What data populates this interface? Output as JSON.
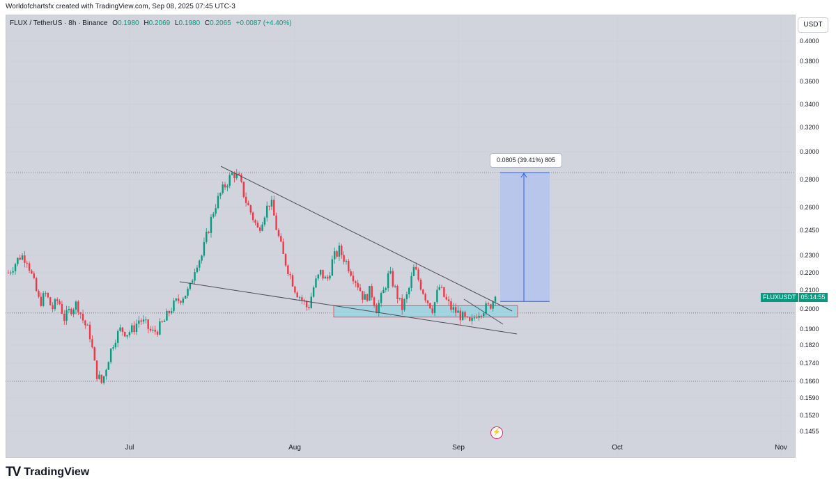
{
  "header": {
    "attribution": "Worldofchartsfx created with TradingView.com, Sep 08, 2025 07:45 UTC-3"
  },
  "legend": {
    "symbol": "FLUX / TetherUS · 8h · Binance",
    "open_label": "O",
    "open": "0.1980",
    "high_label": "H",
    "high": "0.2069",
    "low_label": "L",
    "low": "0.1980",
    "close_label": "C",
    "close": "0.2065",
    "change": "+0.0087 (+4.40%)"
  },
  "currency_button": "USDT",
  "price_badge": {
    "ticker": "FLUXUSDT",
    "countdown": "05:14:55"
  },
  "measure": {
    "label": "0.0805 (39.41%) 805"
  },
  "colors": {
    "up": "#089981",
    "down": "#f23645",
    "panel": "#d1d4dc",
    "measure_fill": "#b3c3ec",
    "measure_line": "#2962ff",
    "zone_fill": "#a3d3df",
    "zone_border": "#f23645"
  },
  "chart_data": {
    "type": "candlestick",
    "y_axis_scale": "log",
    "y_ticks": [
      "0.4000",
      "0.3800",
      "0.3600",
      "0.3400",
      "0.3200",
      "0.3000",
      "0.2800",
      "0.2600",
      "0.2450",
      "0.2300",
      "0.2200",
      "0.2100",
      "0.2000",
      "0.1900",
      "0.1820",
      "0.1740",
      "0.1660",
      "0.1590",
      "0.1520",
      "0.1455"
    ],
    "x_ticks": [
      "Jul",
      "Aug",
      "Sep",
      "Oct",
      "Nov"
    ],
    "horizontal_levels": [
      0.285,
      0.198,
      0.166
    ],
    "support_zone": [
      0.198,
      0.201
    ],
    "measure_range": [
      0.204,
      0.285
    ],
    "close_price": 0.2065,
    "price_path": [
      0.22,
      0.225,
      0.23,
      0.228,
      0.215,
      0.203,
      0.208,
      0.2,
      0.205,
      0.195,
      0.2,
      0.203,
      0.194,
      0.188,
      0.17,
      0.165,
      0.176,
      0.185,
      0.19,
      0.188,
      0.19,
      0.195,
      0.192,
      0.188,
      0.19,
      0.194,
      0.2,
      0.204,
      0.207,
      0.21,
      0.225,
      0.23,
      0.245,
      0.26,
      0.27,
      0.278,
      0.285,
      0.28,
      0.265,
      0.255,
      0.245,
      0.256,
      0.265,
      0.245,
      0.23,
      0.22,
      0.21,
      0.205,
      0.2,
      0.213,
      0.22,
      0.215,
      0.228,
      0.233,
      0.227,
      0.22,
      0.213,
      0.205,
      0.21,
      0.2,
      0.208,
      0.22,
      0.21,
      0.2,
      0.208,
      0.223,
      0.213,
      0.205,
      0.2,
      0.212,
      0.205,
      0.2,
      0.198,
      0.195,
      0.192,
      0.198,
      0.2,
      0.201,
      0.2065
    ]
  }
}
